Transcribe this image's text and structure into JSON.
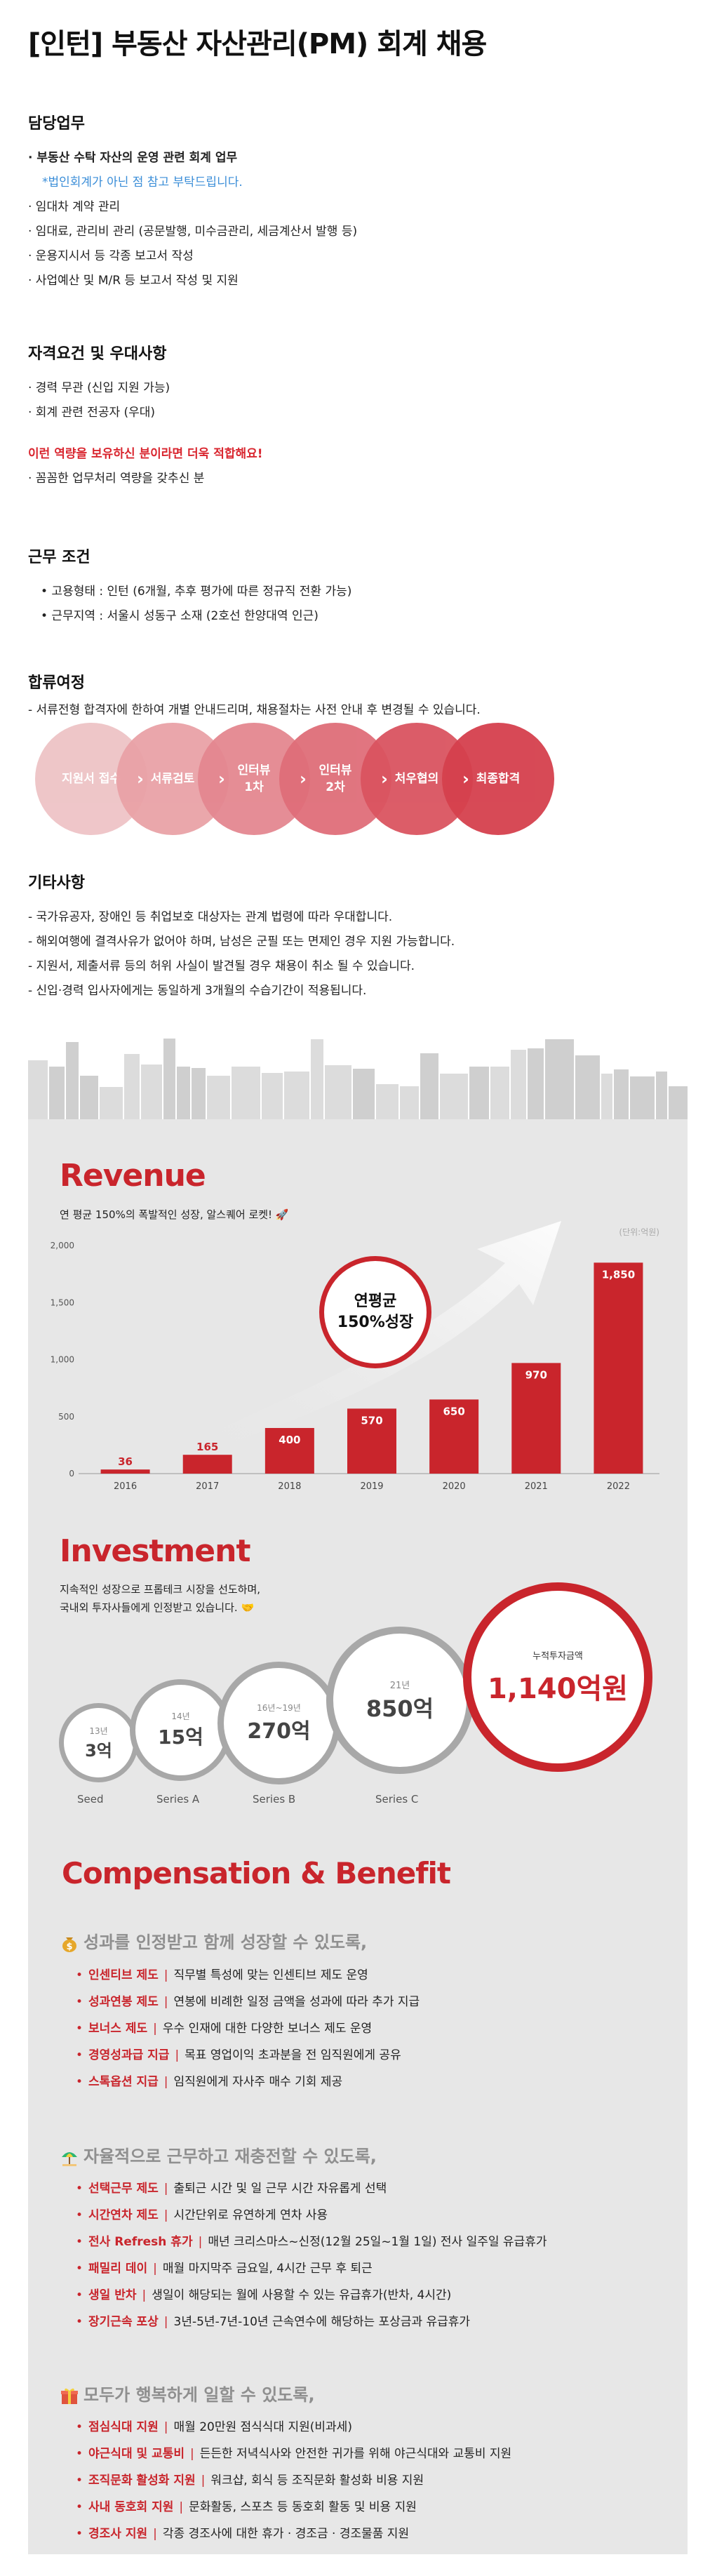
{
  "title": "[인턴] 부동산 자산관리(PM) 회계 채용",
  "duties": {
    "heading": "담당업무",
    "lead": "· 부동산 수탁 자산의 운영 관련 회계 업무",
    "note": "*법인회계가 아닌 점 참고 부탁드립니다.",
    "items": [
      "· 임대차 계약 관리",
      "· 임대료, 관리비 관리 (공문발행, 미수금관리, 세금계산서 발행 등)",
      "· 운용지시서 등 각종 보고서 작성",
      "· 사업예산 및 M/R 등 보고서 작성 및 지원"
    ]
  },
  "requirements": {
    "heading": "자격요건 및 우대사항",
    "items": [
      "· 경력 무관 (신입 지원 가능)",
      "· 회계 관련 전공자 (우대)"
    ],
    "highlight": "이런 역량을 보유하신 분이라면 더욱 적합해요!",
    "extra": "· 꼼꼼한 업무처리 역량을 갖추신 분"
  },
  "conditions": {
    "heading": "근무 조건",
    "items": [
      "• 고용형태 : 인턴 (6개월, 추후 평가에 따른 정규직 전환 가능)",
      "• 근무지역 : 서울시 성동구 소재 (2호선 한양대역 인근)"
    ]
  },
  "process": {
    "heading": "합류여정",
    "desc": "- 서류전형 합격자에 한하여 개별 안내드리며, 채용절차는 사전 안내 후 변경될 수 있습니다.",
    "steps": [
      "지원서 접수",
      "서류검토",
      "인터뷰\n1차",
      "인터뷰\n2차",
      "처우협의",
      "최종합격"
    ],
    "colors": [
      "#eec3c6",
      "#e9a2a7",
      "#e48790",
      "#df6e79",
      "#da5460",
      "#d5404d"
    ]
  },
  "other": {
    "heading": "기타사항",
    "items": [
      "- 국가유공자, 장애인 등 취업보호 대상자는 관계 법령에 따라 우대합니다.",
      "- 해외여행에 결격사유가 없어야 하며, 남성은 군필 또는 면제인 경우 지원 가능합니다.",
      "- 지원서, 제출서류 등의 허위 사실이 발견될 경우 채용이 취소 될 수 있습니다.",
      "- 신입·경력 입사자에게는 동일하게 3개월의 수습기간이 적용됩니다."
    ]
  },
  "revenue": {
    "heading": "Revenue",
    "subtitle": "연 평균 150%의 폭발적인 성장, 알스퀘어 로켓! 🚀",
    "unit": "(단위:억원)",
    "badge": "연평균\n150%성장",
    "accent": "#c9252c"
  },
  "chart_data": {
    "type": "bar",
    "categories": [
      "2016",
      "2017",
      "2018",
      "2019",
      "2020",
      "2021",
      "2022"
    ],
    "values": [
      36,
      165,
      400,
      570,
      650,
      970,
      1850
    ],
    "ylim": [
      0,
      2000
    ],
    "yticks": [
      "0",
      "500",
      "1,000",
      "1,500",
      "2,000"
    ],
    "data_labels": [
      "36",
      "165",
      "400",
      "570",
      "650",
      "970",
      "1,850"
    ]
  },
  "investment": {
    "heading": "Investment",
    "subtitle": "지속적인 성장으로 프롭테크 시장을 선도하며,\n국내외 투자사들에게 인정받고 있습니다. 🤝",
    "rounds": [
      {
        "year": "13년",
        "amount": "3억",
        "name": "Seed"
      },
      {
        "year": "14년",
        "amount": "15억",
        "name": "Series A"
      },
      {
        "year": "16년~19년",
        "amount": "270억",
        "name": "Series B"
      },
      {
        "year": "21년",
        "amount": "850억",
        "name": "Series C"
      }
    ],
    "total_label": "누적투자금액",
    "total": "1,140억원"
  },
  "benefits": {
    "heading": "Compensation & Benefit",
    "groups": [
      {
        "icon": "money-bag-icon",
        "title": "성과를 인정받고 함께 성장할 수 있도록,",
        "items": [
          {
            "label": "인센티브 제도",
            "text": "직무별 특성에 맞는 인센티브 제도 운영"
          },
          {
            "label": "성과연봉 제도",
            "text": "연봉에 비례한 일정 금액을 성과에 따라 추가 지급"
          },
          {
            "label": "보너스 제도",
            "text": "우수 인재에 대한 다양한 보너스 제도 운영"
          },
          {
            "label": "경영성과급 지급",
            "text": "목표 영업이익 초과분을 전 임직원에게 공유"
          },
          {
            "label": "스톡옵션 지급",
            "text": "임직원에게 자사주 매수 기회 제공"
          }
        ]
      },
      {
        "icon": "beach-umbrella-icon",
        "title": "자율적으로 근무하고 재충전할 수 있도록,",
        "items": [
          {
            "label": "선택근무 제도",
            "text": "출퇴근 시간 및 일 근무 시간 자유롭게 선택"
          },
          {
            "label": "시간연차 제도",
            "text": "시간단위로 유연하게 연차 사용"
          },
          {
            "label": "전사 Refresh 휴가",
            "text": "매년 크리스마스~신정(12월 25일~1월 1일) 전사 일주일 유급휴가"
          },
          {
            "label": "패밀리 데이",
            "text": "매월 마지막주 금요일, 4시간 근무 후 퇴근"
          },
          {
            "label": "생일 반차",
            "text": "생일이 해당되는 월에 사용할 수 있는 유급휴가(반차, 4시간)"
          },
          {
            "label": "장기근속 포상",
            "text": "3년-5년-7년-10년 근속연수에 해당하는 포상금과 유급휴가"
          }
        ]
      },
      {
        "icon": "gift-icon",
        "title": "모두가 행복하게 일할 수 있도록,",
        "items": [
          {
            "label": "점심식대 지원",
            "text": "매월 20만원 점식식대 지원(비과세)"
          },
          {
            "label": "야근식대 및 교통비",
            "text": "든든한 저녁식사와 안전한 귀가를 위해 야근식대와 교통비 지원"
          },
          {
            "label": "조직문화 활성화 지원",
            "text": "워크샵, 회식 등 조직문화 활성화 비용 지원"
          },
          {
            "label": "사내 동호회 지원",
            "text": "문화활동, 스포츠 등 동호회 활동 및 비용 지원"
          },
          {
            "label": "경조사 지원",
            "text": "각종 경조사에 대한 휴가 · 경조금 · 경조물품 지원"
          }
        ]
      }
    ]
  }
}
